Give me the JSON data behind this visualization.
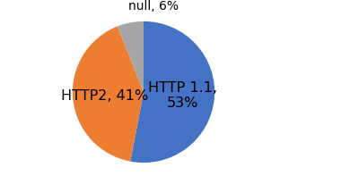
{
  "labels": [
    "HTTP 1.1,\n53%",
    "HTTP2, 41%",
    "null, 6%"
  ],
  "values": [
    53,
    41,
    6
  ],
  "colors": [
    "#4472C4",
    "#ED7D31",
    "#A5A5A5"
  ],
  "startangle": 90,
  "background_color": "#FFFFFF",
  "label_fontsize": 11.5,
  "null_label_fontsize": 10,
  "figsize": [
    4.0,
    2.06
  ],
  "dpi": 100
}
